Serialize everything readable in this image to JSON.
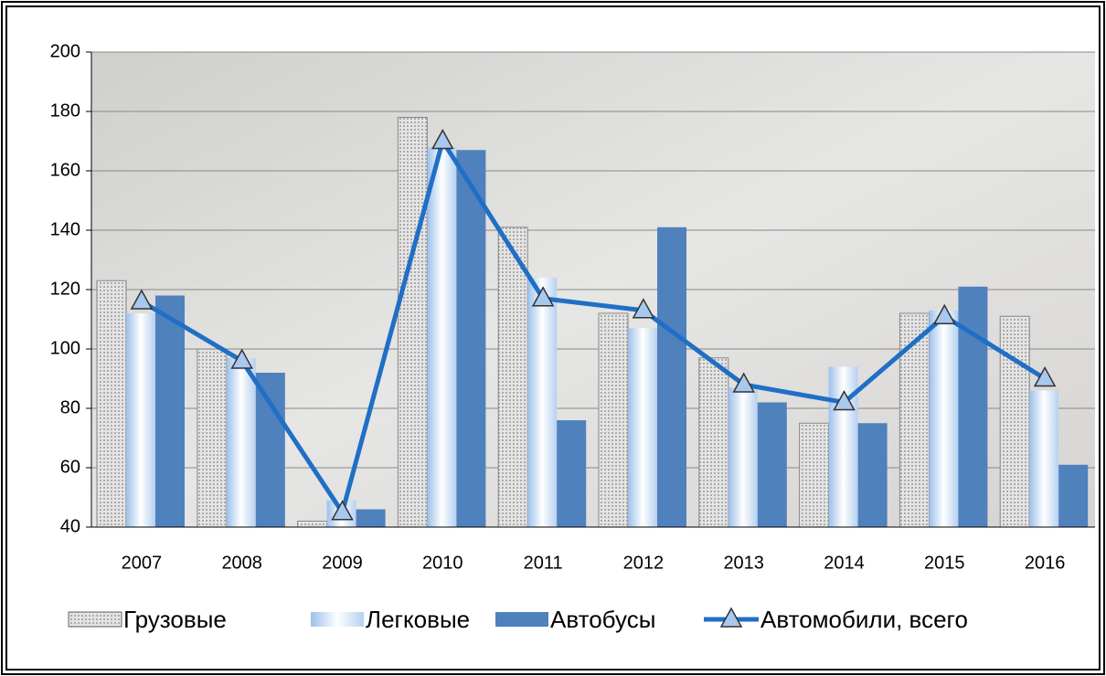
{
  "chart_data": {
    "type": "bar",
    "categories": [
      "2007",
      "2008",
      "2009",
      "2010",
      "2011",
      "2012",
      "2013",
      "2014",
      "2015",
      "2016"
    ],
    "series": [
      {
        "name": "Грузовые",
        "color": "#c8c8c8",
        "values": [
          123,
          100,
          42,
          178,
          141,
          112,
          97,
          75,
          112,
          111
        ]
      },
      {
        "name": "Легковые",
        "color": "#dce9f7",
        "values": [
          112,
          97,
          49,
          168,
          124,
          107,
          87,
          94,
          113,
          86
        ]
      },
      {
        "name": "Автобусы",
        "color": "#4f81bd",
        "values": [
          118,
          92,
          46,
          167,
          76,
          141,
          82,
          75,
          121,
          61
        ]
      },
      {
        "name": "Автомобили, всего",
        "type": "line",
        "color": "#1f6fc6",
        "values": [
          116,
          96,
          45,
          170,
          117,
          113,
          88,
          82,
          111,
          90
        ]
      }
    ],
    "ylim": [
      40,
      200
    ],
    "yticks": [
      40,
      60,
      80,
      100,
      120,
      140,
      160,
      180,
      200
    ],
    "grid": true,
    "legend": "bottom"
  }
}
